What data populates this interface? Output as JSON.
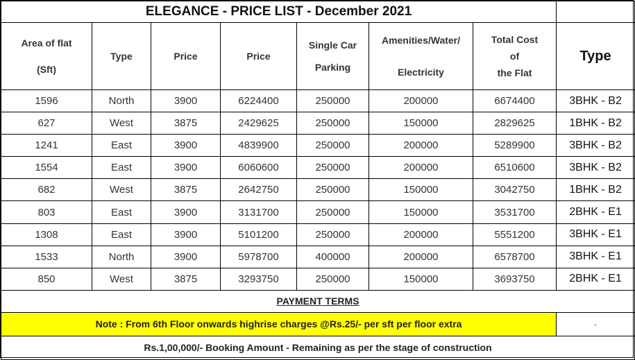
{
  "title": "ELEGANCE - PRICE LIST - December 2021",
  "headers": {
    "area": [
      "Area of flat",
      "(Sft)"
    ],
    "type": "Type",
    "price1": "Price",
    "price2": "Price",
    "parking": [
      "Single Car",
      "Parking"
    ],
    "amenities": [
      "Amenities/Water/",
      "Electricity"
    ],
    "total": [
      "Total Cost",
      "of",
      "the Flat"
    ],
    "flat_type": "Type"
  },
  "rows": [
    {
      "area": "1596",
      "facing": "North",
      "rate": "3900",
      "price": "6224400",
      "parking": "250000",
      "amenities": "200000",
      "total": "6674400",
      "flat_type": "3BHK - B2"
    },
    {
      "area": "627",
      "facing": "West",
      "rate": "3875",
      "price": "2429625",
      "parking": "250000",
      "amenities": "150000",
      "total": "2829625",
      "flat_type": "1BHK - B2"
    },
    {
      "area": "1241",
      "facing": "East",
      "rate": "3900",
      "price": "4839900",
      "parking": "250000",
      "amenities": "200000",
      "total": "5289900",
      "flat_type": "3BHK - B2"
    },
    {
      "area": "1554",
      "facing": "East",
      "rate": "3900",
      "price": "6060600",
      "parking": "250000",
      "amenities": "200000",
      "total": "6510600",
      "flat_type": "3BHK - B2"
    },
    {
      "area": "682",
      "facing": "West",
      "rate": "3875",
      "price": "2642750",
      "parking": "250000",
      "amenities": "150000",
      "total": "3042750",
      "flat_type": "1BHK - B2"
    },
    {
      "area": "803",
      "facing": "East",
      "rate": "3900",
      "price": "3131700",
      "parking": "250000",
      "amenities": "150000",
      "total": "3531700",
      "flat_type": "2BHK - E1"
    },
    {
      "area": "1308",
      "facing": "East",
      "rate": "3900",
      "price": "5101200",
      "parking": "250000",
      "amenities": "200000",
      "total": "5551200",
      "flat_type": "3BHK - E1"
    },
    {
      "area": "1533",
      "facing": "North",
      "rate": "3900",
      "price": "5978700",
      "parking": "400000",
      "amenities": "200000",
      "total": "6578700",
      "flat_type": "3BHK - E1"
    },
    {
      "area": "850",
      "facing": "West",
      "rate": "3875",
      "price": "3293750",
      "parking": "250000",
      "amenities": "150000",
      "total": "3693750",
      "flat_type": "2BHK - E1"
    }
  ],
  "payment_terms": "PAYMENT TERMS",
  "note": "Note : From 6th  Floor onwards highrise charges @Rs.25/- per sft per floor extra",
  "note_side": "-",
  "booking": "Rs.1,00,000/- Booking Amount - Remaining as per the stage of construction",
  "colors": {
    "highlight": "#ffff00",
    "border": "#000000"
  }
}
